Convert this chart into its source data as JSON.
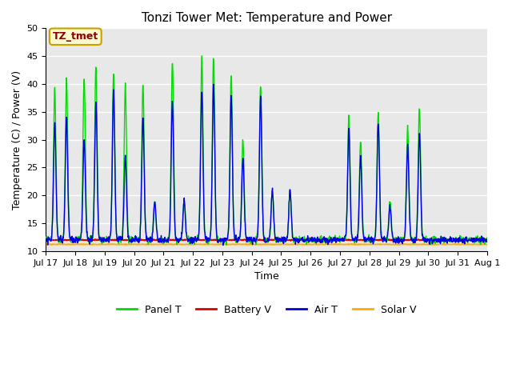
{
  "title": "Tonzi Tower Met: Temperature and Power",
  "xlabel": "Time",
  "ylabel": "Temperature (C) / Power (V)",
  "ylim": [
    10,
    50
  ],
  "yticks": [
    10,
    15,
    20,
    25,
    30,
    35,
    40,
    45,
    50
  ],
  "xtick_labels": [
    "Jul 17",
    "Jul 18",
    "Jul 19",
    "Jul 20",
    "Jul 21",
    "Jul 22",
    "Jul 23",
    "Jul 24",
    "Jul 25",
    "Jul 26",
    "Jul 27",
    "Jul 28",
    "Jul 29",
    "Jul 30",
    "Jul 31",
    "Aug 1"
  ],
  "annotation_text": "TZ_tmet",
  "annotation_color": "#8B0000",
  "annotation_bg": "#FFFACD",
  "annotation_edge": "#C8A000",
  "line_colors": {
    "panel": "#00DD00",
    "battery": "#DD0000",
    "air": "#0000DD",
    "solar": "#FFAA00"
  },
  "legend_labels": [
    "Panel T",
    "Battery V",
    "Air T",
    "Solar V"
  ],
  "bg_color": "#E8E8E8",
  "fig_bg": "#FFFFFF",
  "grid_color": "#FFFFFF",
  "n_days": 15,
  "panel_base": 12.0,
  "battery_level": 12.0,
  "solar_level": 11.2
}
